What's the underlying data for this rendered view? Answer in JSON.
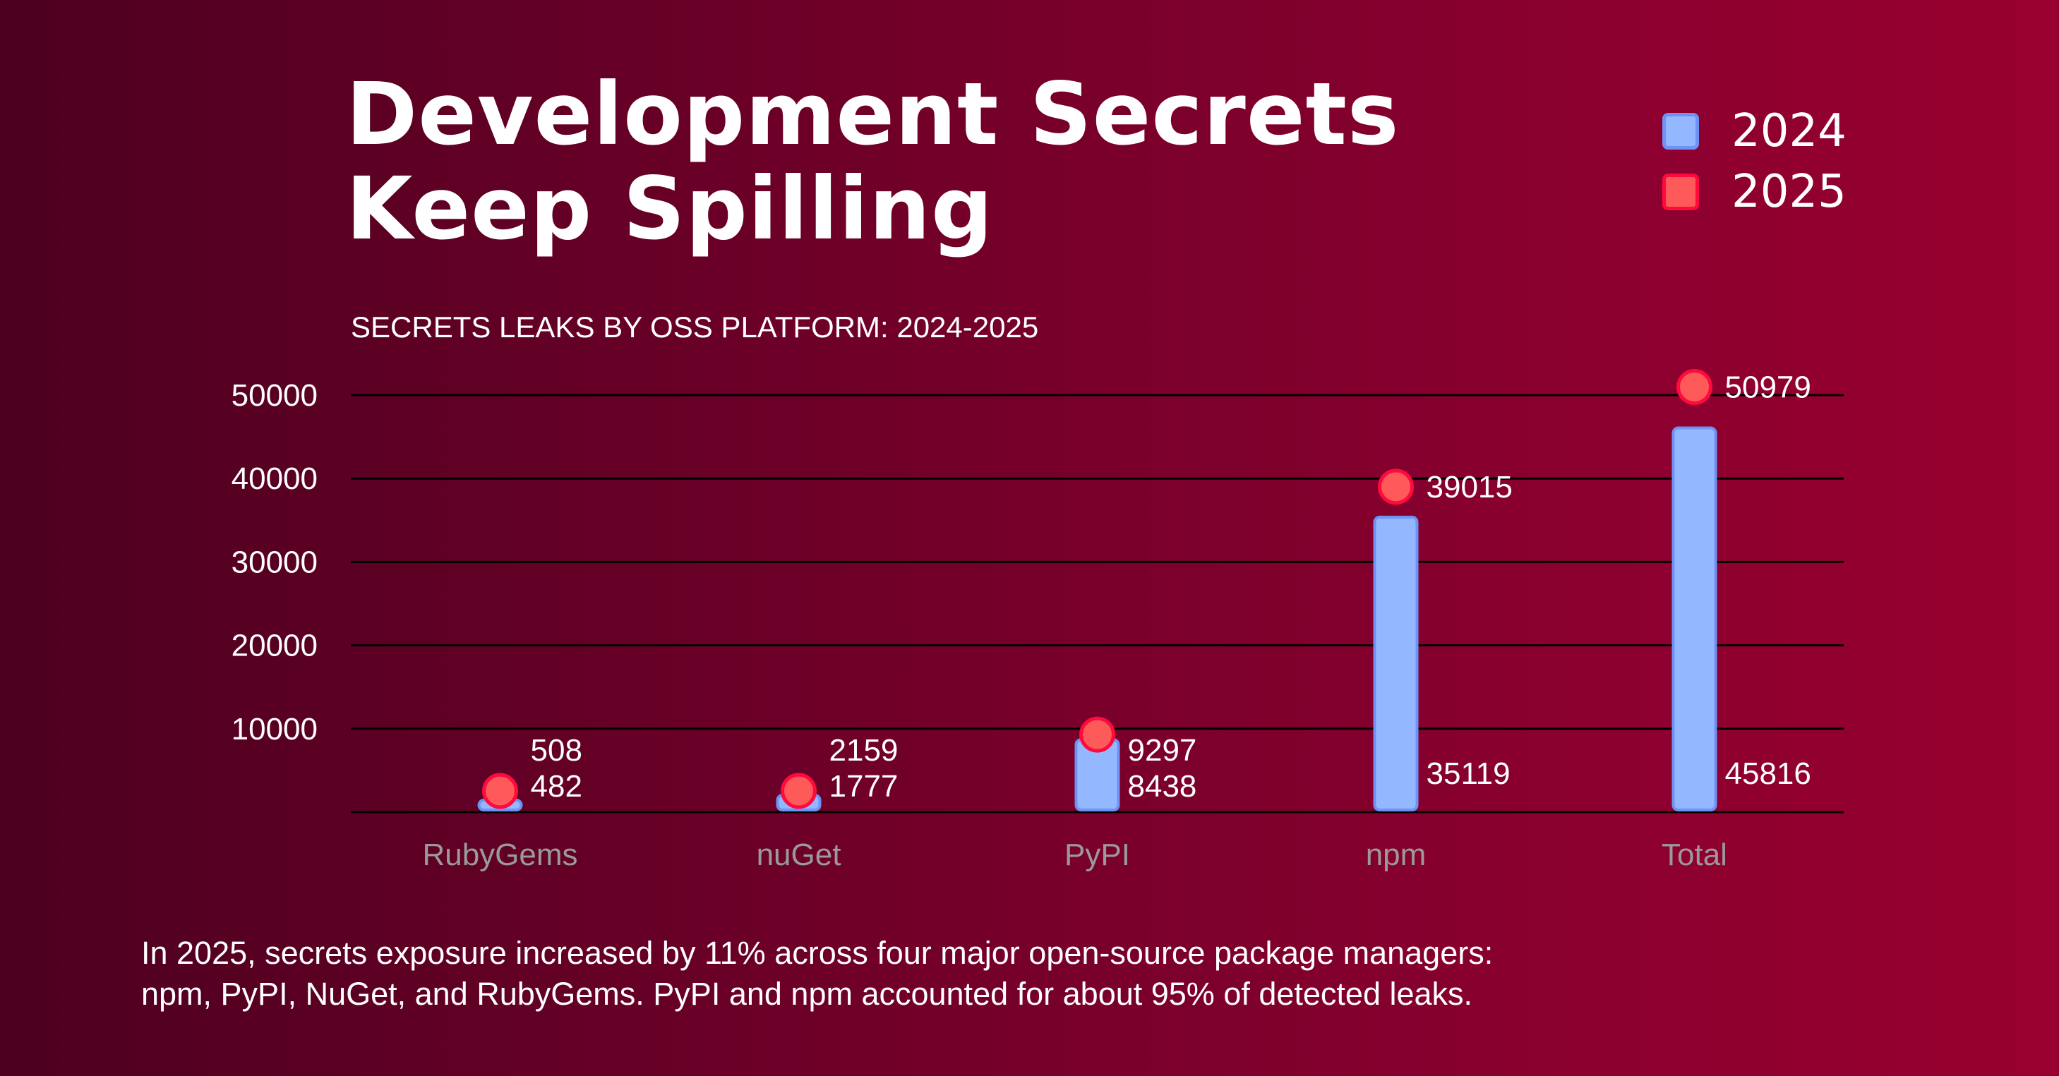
{
  "title_lines": [
    "Development Secrets",
    "Keep Spilling"
  ],
  "chart_data": {
    "type": "bar",
    "title": "SECRETS LEAKS BY OSS PLATFORM: 2024-2025",
    "categories": [
      "RubyGems",
      "nuGet",
      "PyPI",
      "npm",
      "Total"
    ],
    "series": [
      {
        "name": "2024",
        "mark": "bar",
        "color": "#94b8ff",
        "values": [
          482,
          1777,
          8438,
          35119,
          45816
        ]
      },
      {
        "name": "2025",
        "mark": "dot",
        "color": "#ff5a5a",
        "values": [
          508,
          2159,
          9297,
          39015,
          50979
        ]
      }
    ],
    "yticks": [
      "10000",
      "20000",
      "30000",
      "40000",
      "50000"
    ],
    "ylim": [
      0,
      50000
    ],
    "grid": true,
    "legend": "top-right"
  },
  "colors": {
    "bar_border": "#6e93f5",
    "dot_border": "#ff0a3c",
    "axis_label": "#9a9a9a"
  },
  "footer": [
    "In 2025, secrets exposure increased by 11% across four major open-source package managers:",
    "npm, PyPI, NuGet, and RubyGems. PyPI and npm accounted for about 95% of detected leaks."
  ]
}
